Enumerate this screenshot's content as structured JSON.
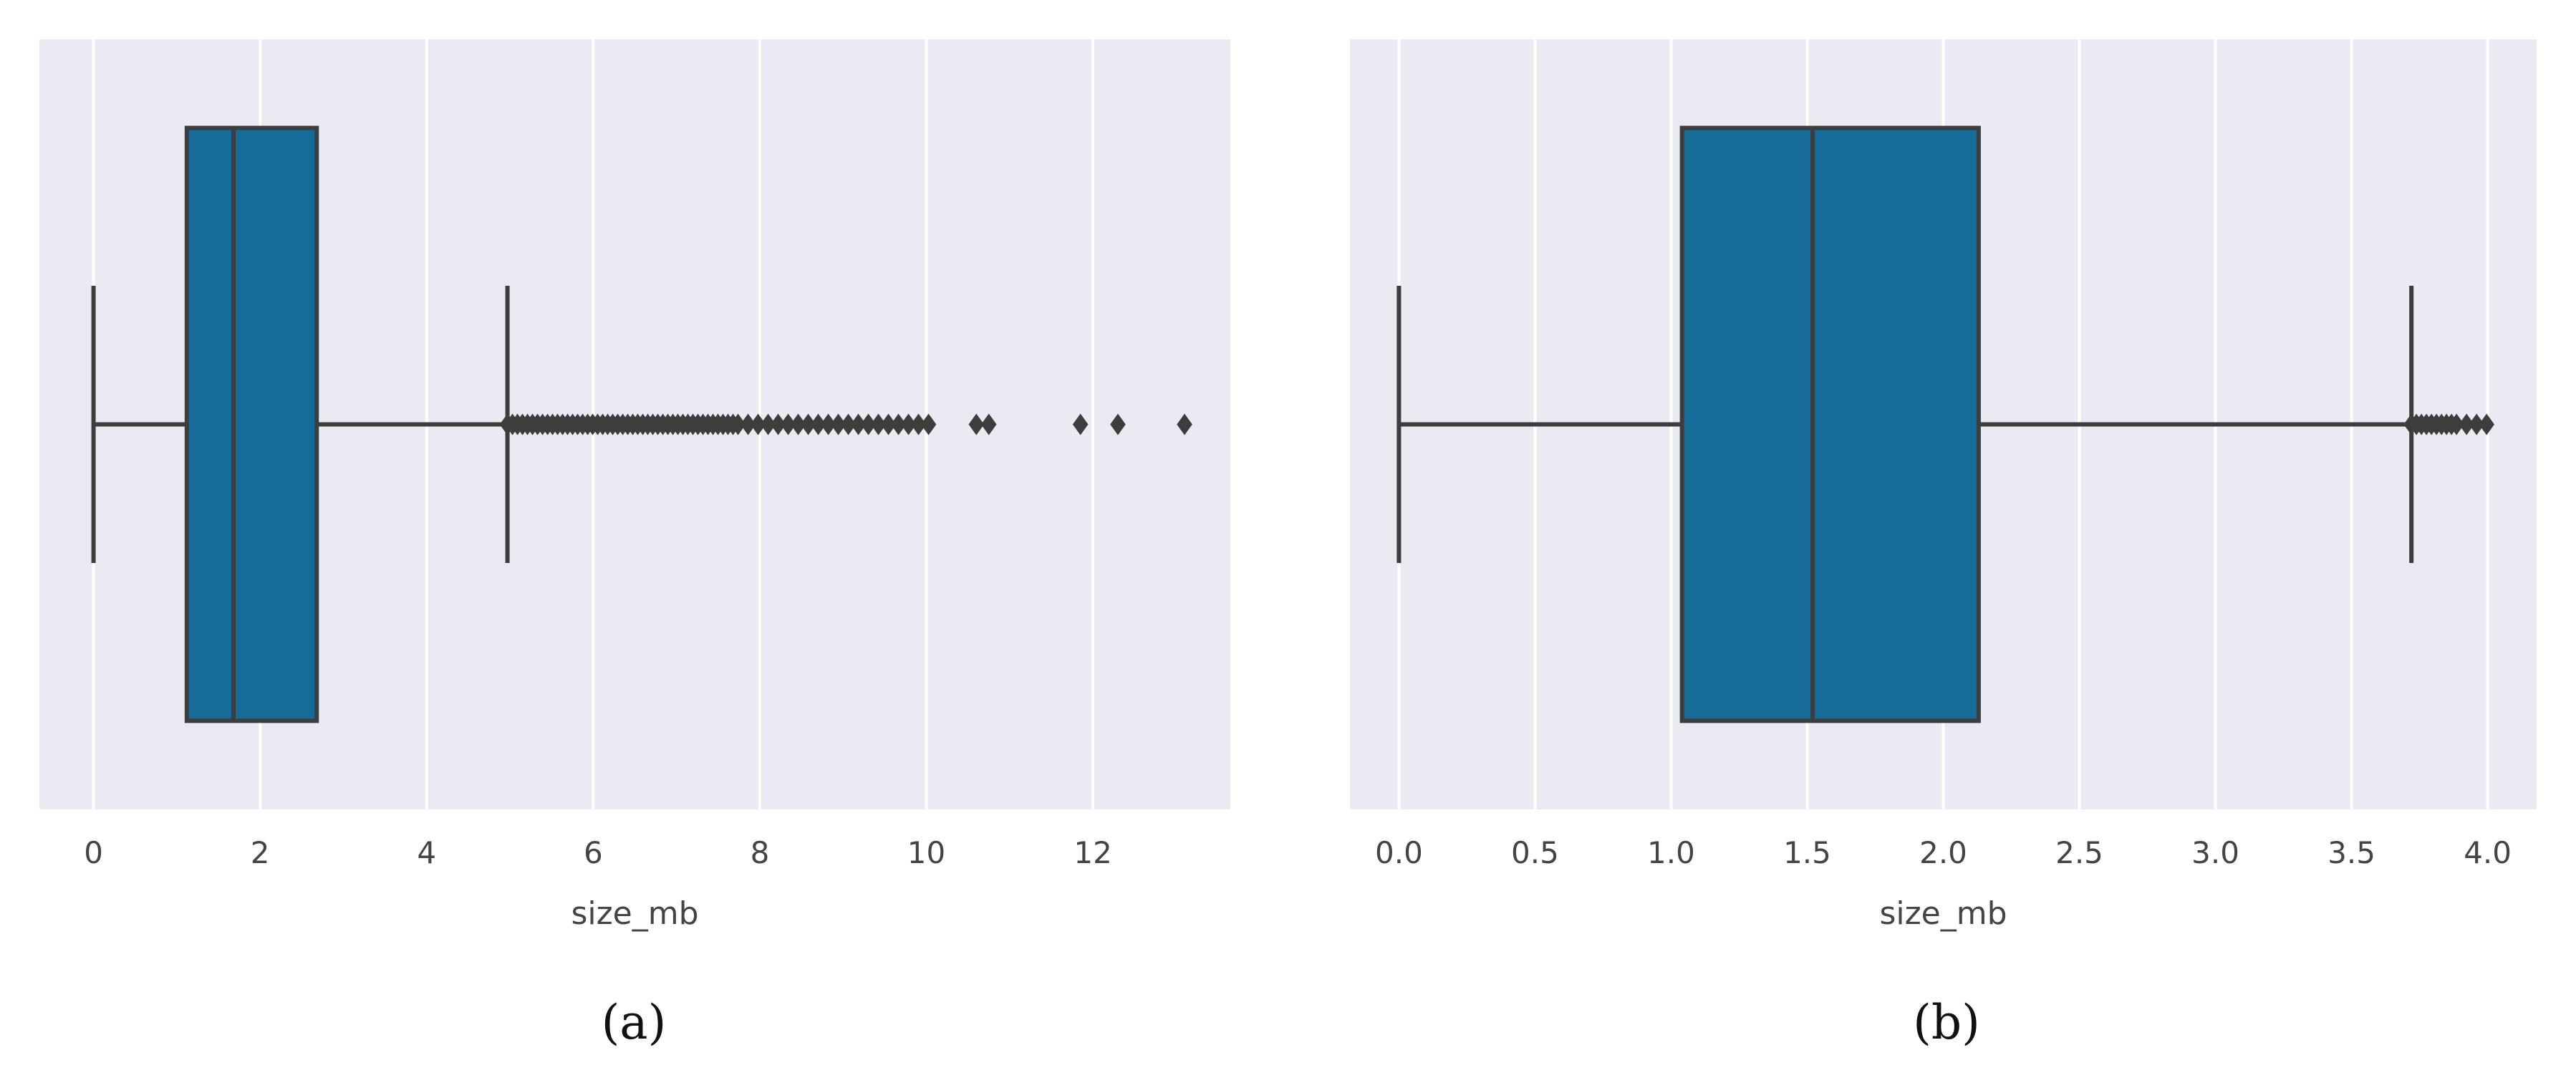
{
  "chart_data": [
    {
      "type": "box",
      "panel_label": "a",
      "xlabel": "size_mb",
      "ylabel": "",
      "xlim": [
        -0.65,
        13.65
      ],
      "xticks": [
        0,
        2,
        4,
        6,
        8,
        10,
        12
      ],
      "xtick_labels": [
        "0",
        "2",
        "4",
        "6",
        "8",
        "10",
        "12"
      ],
      "grid": true,
      "box": {
        "whisker_low": 0,
        "q1": 1.12,
        "median": 1.68,
        "q3": 2.68,
        "whisker_high": 4.97
      },
      "outlier_range": [
        4.97,
        10.1
      ],
      "outliers_isolated": [
        10.6,
        10.75,
        11.85,
        12.3,
        13.1
      ],
      "colors": {
        "background": "#eaeaf2",
        "box": "#176b99",
        "line": "#3d3d3d",
        "grid": "#ffffff"
      }
    },
    {
      "type": "box",
      "panel_label": "b",
      "xlabel": "size_mb",
      "ylabel": "",
      "xlim": [
        -0.18,
        4.18
      ],
      "xticks": [
        0,
        0.5,
        1,
        1.5,
        2,
        2.5,
        3,
        3.5,
        4
      ],
      "xtick_labels": [
        "0.0",
        "0.5",
        "1.0",
        "1.5",
        "2.0",
        "2.5",
        "3.0",
        "3.5",
        "4.0"
      ],
      "grid": true,
      "box": {
        "whisker_low": 0,
        "q1": 1.04,
        "median": 1.52,
        "q3": 2.13,
        "whisker_high": 3.72
      },
      "outlier_range": [
        3.72,
        4.0
      ],
      "outliers_isolated": [],
      "colors": {
        "background": "#eaeaf2",
        "box": "#176b99",
        "line": "#3d3d3d",
        "grid": "#ffffff"
      }
    }
  ],
  "captions": {
    "a": "(a)",
    "b": "(b)"
  }
}
